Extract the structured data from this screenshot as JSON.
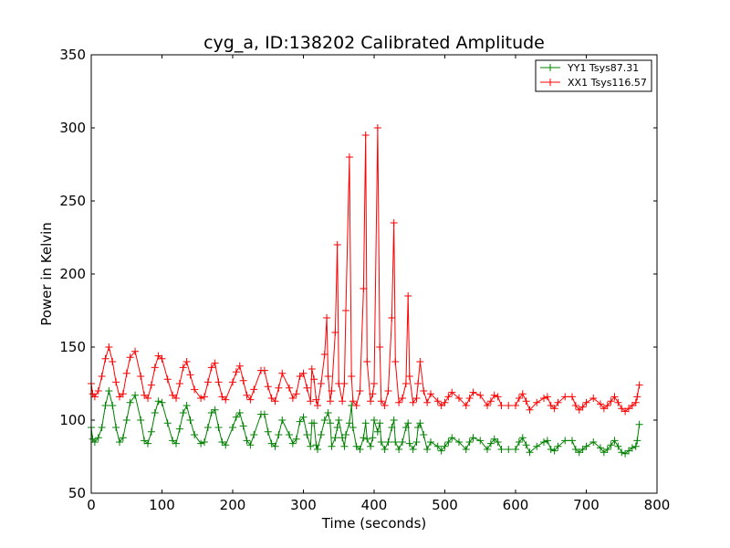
{
  "chart_data": {
    "type": "line",
    "title": "cyg_a, ID:138202 Calibrated Amplitude",
    "xlabel": "Time (seconds)",
    "ylabel": "Power in Kelvin",
    "xlim": [
      0,
      800
    ],
    "ylim": [
      50,
      350
    ],
    "xticks": [
      "0",
      "100",
      "200",
      "300",
      "400",
      "500",
      "600",
      "700",
      "800"
    ],
    "yticks": [
      "50",
      "100",
      "150",
      "200",
      "250",
      "300",
      "350"
    ],
    "grid": false,
    "legend_position": "top-right",
    "marker": "plus",
    "series": [
      {
        "name": "YY1 Tsys87.31",
        "color": "#008000",
        "x": [
          0,
          2,
          5,
          10,
          15,
          20,
          25,
          30,
          35,
          40,
          45,
          50,
          55,
          62,
          70,
          75,
          80,
          85,
          90,
          95,
          100,
          108,
          115,
          120,
          125,
          130,
          135,
          140,
          146,
          155,
          160,
          165,
          170,
          175,
          180,
          185,
          190,
          200,
          205,
          210,
          215,
          220,
          225,
          230,
          240,
          245,
          250,
          255,
          260,
          265,
          270,
          280,
          285,
          290,
          295,
          300,
          305,
          310,
          312,
          315,
          318,
          320,
          325,
          330,
          335,
          338,
          340,
          345,
          348,
          350,
          355,
          358,
          360,
          365,
          368,
          370,
          375,
          380,
          385,
          388,
          390,
          395,
          398,
          400,
          405,
          408,
          410,
          415,
          420,
          425,
          428,
          430,
          435,
          440,
          445,
          448,
          450,
          455,
          460,
          462,
          465,
          470,
          475,
          480,
          490,
          495,
          500,
          505,
          510,
          520,
          530,
          535,
          540,
          550,
          560,
          565,
          570,
          575,
          580,
          590,
          600,
          605,
          610,
          615,
          620,
          630,
          640,
          645,
          650,
          655,
          660,
          670,
          680,
          685,
          690,
          695,
          700,
          710,
          720,
          725,
          730,
          735,
          740,
          745,
          750,
          755,
          760,
          765,
          770,
          772,
          775
        ],
        "y": [
          95,
          87,
          85,
          88,
          95,
          110,
          120,
          110,
          95,
          85,
          88,
          100,
          112,
          117,
          100,
          86,
          84,
          92,
          105,
          113,
          112,
          98,
          86,
          84,
          94,
          105,
          110,
          100,
          90,
          84,
          85,
          95,
          105,
          107,
          95,
          85,
          83,
          95,
          102,
          105,
          96,
          86,
          83,
          90,
          104,
          104,
          92,
          84,
          82,
          90,
          100,
          90,
          84,
          87,
          99,
          102,
          90,
          82,
          98,
          98,
          83,
          80,
          90,
          100,
          105,
          98,
          82,
          88,
          95,
          100,
          88,
          82,
          90,
          98,
          110,
          95,
          82,
          80,
          88,
          98,
          87,
          82,
          88,
          100,
          92,
          98,
          85,
          80,
          85,
          95,
          100,
          85,
          80,
          85,
          95,
          98,
          84,
          80,
          85,
          95,
          98,
          90,
          80,
          85,
          82,
          79,
          82,
          85,
          88,
          85,
          80,
          85,
          88,
          86,
          80,
          84,
          87,
          85,
          80,
          80,
          80,
          85,
          88,
          83,
          78,
          82,
          85,
          86,
          80,
          79,
          82,
          86,
          86,
          80,
          78,
          80,
          82,
          85,
          81,
          78,
          80,
          83,
          86,
          82,
          78,
          77,
          79,
          81,
          82,
          86,
          97
        ]
      },
      {
        "name": "XX1 Tsys116.57",
        "color": "#ff0000",
        "x": [
          0,
          2,
          5,
          10,
          15,
          20,
          25,
          30,
          35,
          40,
          45,
          50,
          55,
          62,
          70,
          75,
          80,
          85,
          90,
          95,
          100,
          108,
          115,
          120,
          125,
          130,
          135,
          140,
          146,
          155,
          160,
          165,
          170,
          175,
          180,
          185,
          190,
          200,
          205,
          210,
          215,
          220,
          225,
          230,
          240,
          245,
          250,
          255,
          260,
          265,
          270,
          280,
          285,
          290,
          295,
          300,
          305,
          310,
          312,
          315,
          318,
          320,
          325,
          330,
          333,
          335,
          338,
          340,
          345,
          348,
          350,
          355,
          358,
          360,
          365,
          368,
          370,
          375,
          380,
          385,
          388,
          390,
          395,
          398,
          400,
          405,
          408,
          410,
          415,
          420,
          425,
          428,
          430,
          435,
          440,
          445,
          448,
          450,
          455,
          460,
          462,
          465,
          470,
          475,
          480,
          490,
          495,
          500,
          505,
          510,
          520,
          530,
          535,
          540,
          550,
          560,
          565,
          570,
          575,
          580,
          590,
          600,
          605,
          610,
          615,
          620,
          630,
          640,
          645,
          650,
          655,
          660,
          670,
          680,
          685,
          690,
          695,
          700,
          710,
          720,
          725,
          730,
          735,
          740,
          745,
          750,
          755,
          760,
          765,
          770,
          772,
          775
        ],
        "y": [
          125,
          118,
          116,
          120,
          130,
          142,
          150,
          140,
          126,
          116,
          118,
          132,
          143,
          147,
          130,
          117,
          115,
          124,
          136,
          144,
          142,
          128,
          117,
          115,
          125,
          136,
          140,
          131,
          121,
          115,
          116,
          126,
          136,
          139,
          126,
          116,
          114,
          126,
          133,
          137,
          127,
          117,
          114,
          121,
          134,
          134,
          123,
          115,
          113,
          122,
          132,
          122,
          115,
          118,
          130,
          132,
          122,
          113,
          135,
          128,
          114,
          110,
          125,
          145,
          170,
          130,
          113,
          120,
          160,
          220,
          125,
          113,
          125,
          175,
          280,
          130,
          113,
          110,
          120,
          190,
          295,
          140,
          113,
          118,
          125,
          300,
          150,
          113,
          110,
          120,
          170,
          235,
          140,
          112,
          115,
          125,
          185,
          130,
          112,
          115,
          125,
          140,
          120,
          112,
          118,
          113,
          110,
          112,
          116,
          119,
          115,
          110,
          115,
          119,
          117,
          110,
          113,
          117,
          116,
          110,
          110,
          110,
          115,
          118,
          113,
          107,
          112,
          115,
          116,
          110,
          108,
          112,
          116,
          116,
          110,
          107,
          109,
          112,
          115,
          111,
          108,
          110,
          113,
          116,
          112,
          108,
          106,
          108,
          110,
          112,
          116,
          124
        ]
      }
    ]
  }
}
